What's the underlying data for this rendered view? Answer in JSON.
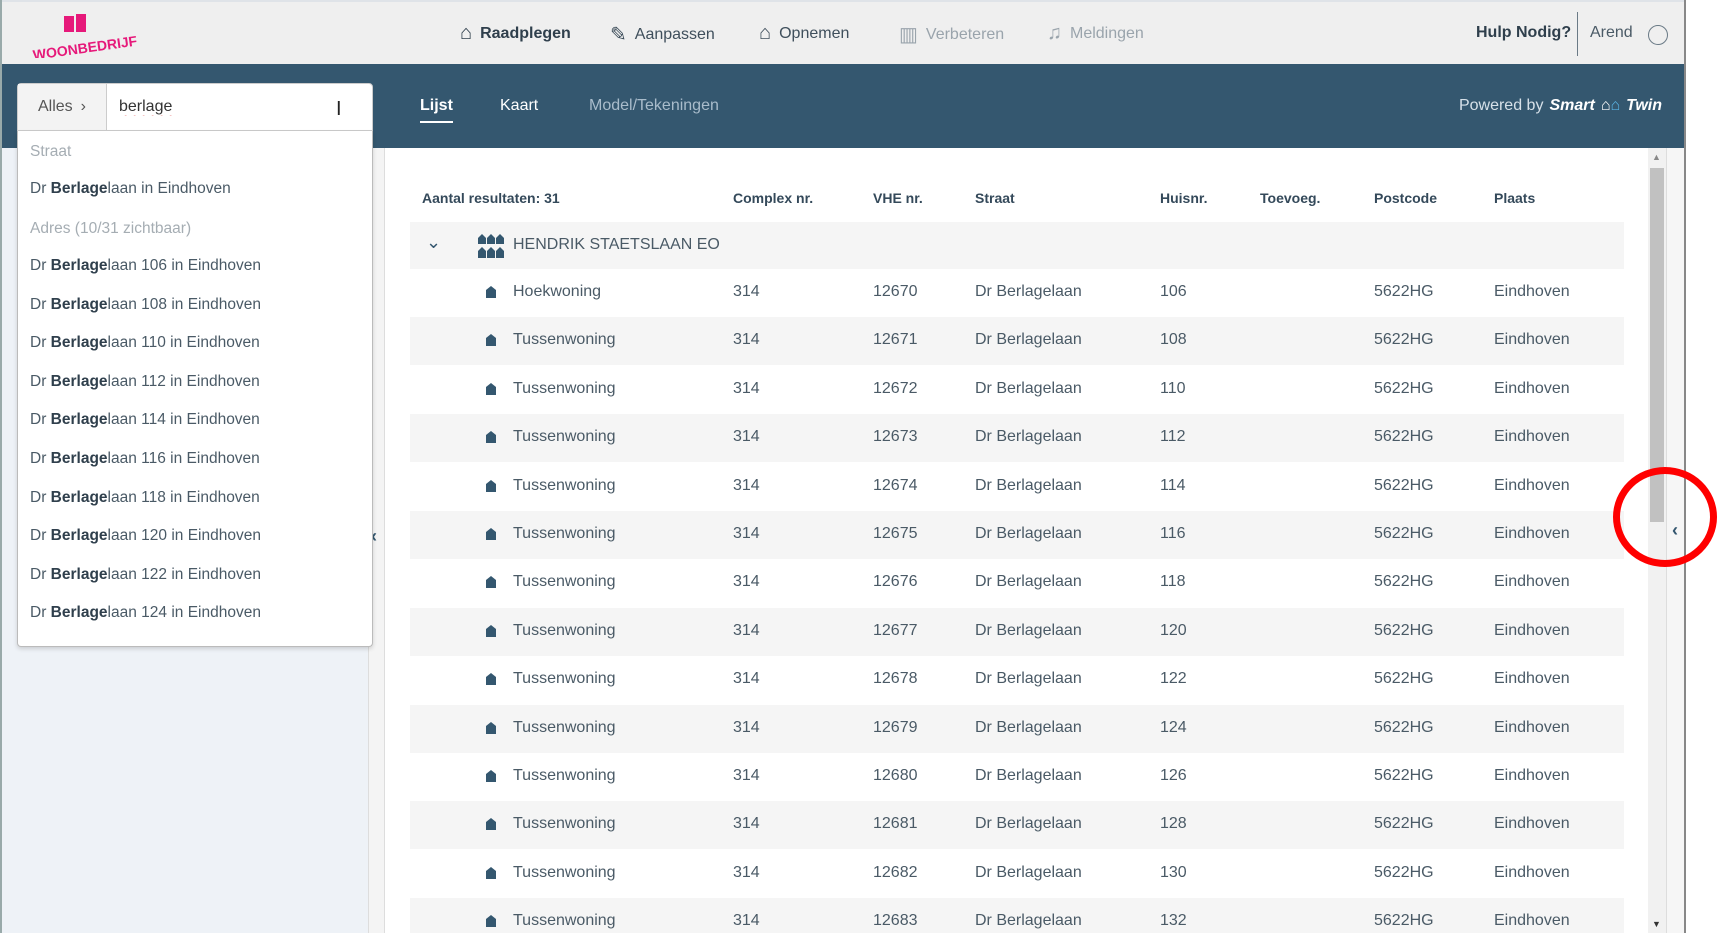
{
  "header": {
    "logo_text": "WOONBEDRIJF",
    "nav": [
      {
        "label": "Raadplegen",
        "icon": "house-search-icon",
        "state": "active"
      },
      {
        "label": "Aanpassen",
        "icon": "edit-icon",
        "state": "normal"
      },
      {
        "label": "Opnemen",
        "icon": "house-check-icon",
        "state": "normal"
      },
      {
        "label": "Verbeteren",
        "icon": "chart-icon",
        "state": "disabled"
      },
      {
        "label": "Meldingen",
        "icon": "bell-icon",
        "state": "disabled"
      }
    ],
    "help": "Hulp Nodig?",
    "user": "Arend"
  },
  "toolbar": {
    "tabs": [
      "Lijst",
      "Kaart",
      "Model/Tekeningen"
    ],
    "powered_by": "Powered by",
    "brand1": "Smart",
    "brand2": "Twin"
  },
  "search": {
    "scope": "Alles",
    "query": "berlage"
  },
  "dropdown": {
    "street_header": "Straat",
    "streets": [
      {
        "pre": "Dr ",
        "bold": "Berlage",
        "post": "laan in Eindhoven"
      }
    ],
    "address_header": "Adres (10/31 zichtbaar)",
    "addresses": [
      {
        "pre": "Dr ",
        "bold": "Berlage",
        "post": "laan 106 in Eindhoven"
      },
      {
        "pre": "Dr ",
        "bold": "Berlage",
        "post": "laan 108 in Eindhoven"
      },
      {
        "pre": "Dr ",
        "bold": "Berlage",
        "post": "laan 110 in Eindhoven"
      },
      {
        "pre": "Dr ",
        "bold": "Berlage",
        "post": "laan 112 in Eindhoven"
      },
      {
        "pre": "Dr ",
        "bold": "Berlage",
        "post": "laan 114 in Eindhoven"
      },
      {
        "pre": "Dr ",
        "bold": "Berlage",
        "post": "laan 116 in Eindhoven"
      },
      {
        "pre": "Dr ",
        "bold": "Berlage",
        "post": "laan 118 in Eindhoven"
      },
      {
        "pre": "Dr ",
        "bold": "Berlage",
        "post": "laan 120 in Eindhoven"
      },
      {
        "pre": "Dr ",
        "bold": "Berlage",
        "post": "laan 122 in Eindhoven"
      },
      {
        "pre": "Dr ",
        "bold": "Berlage",
        "post": "laan 124 in Eindhoven"
      }
    ]
  },
  "table": {
    "count_label": "Aantal resultaten: 31",
    "columns": [
      "Complex nr.",
      "VHE nr.",
      "Straat",
      "Huisnr.",
      "Toevoeg.",
      "Postcode",
      "Plaats"
    ],
    "group": "HENDRIK STAETSLAAN EO",
    "rows": [
      [
        "Hoekwoning",
        "314",
        "12670",
        "Dr Berlagelaan",
        "106",
        "",
        "5622HG",
        "Eindhoven"
      ],
      [
        "Tussenwoning",
        "314",
        "12671",
        "Dr Berlagelaan",
        "108",
        "",
        "5622HG",
        "Eindhoven"
      ],
      [
        "Tussenwoning",
        "314",
        "12672",
        "Dr Berlagelaan",
        "110",
        "",
        "5622HG",
        "Eindhoven"
      ],
      [
        "Tussenwoning",
        "314",
        "12673",
        "Dr Berlagelaan",
        "112",
        "",
        "5622HG",
        "Eindhoven"
      ],
      [
        "Tussenwoning",
        "314",
        "12674",
        "Dr Berlagelaan",
        "114",
        "",
        "5622HG",
        "Eindhoven"
      ],
      [
        "Tussenwoning",
        "314",
        "12675",
        "Dr Berlagelaan",
        "116",
        "",
        "5622HG",
        "Eindhoven"
      ],
      [
        "Tussenwoning",
        "314",
        "12676",
        "Dr Berlagelaan",
        "118",
        "",
        "5622HG",
        "Eindhoven"
      ],
      [
        "Tussenwoning",
        "314",
        "12677",
        "Dr Berlagelaan",
        "120",
        "",
        "5622HG",
        "Eindhoven"
      ],
      [
        "Tussenwoning",
        "314",
        "12678",
        "Dr Berlagelaan",
        "122",
        "",
        "5622HG",
        "Eindhoven"
      ],
      [
        "Tussenwoning",
        "314",
        "12679",
        "Dr Berlagelaan",
        "124",
        "",
        "5622HG",
        "Eindhoven"
      ],
      [
        "Tussenwoning",
        "314",
        "12680",
        "Dr Berlagelaan",
        "126",
        "",
        "5622HG",
        "Eindhoven"
      ],
      [
        "Tussenwoning",
        "314",
        "12681",
        "Dr Berlagelaan",
        "128",
        "",
        "5622HG",
        "Eindhoven"
      ],
      [
        "Tussenwoning",
        "314",
        "12682",
        "Dr Berlagelaan",
        "130",
        "",
        "5622HG",
        "Eindhoven"
      ],
      [
        "Tussenwoning",
        "314",
        "12683",
        "Dr Berlagelaan",
        "132",
        "",
        "5622HG",
        "Eindhoven"
      ]
    ]
  },
  "colors": {
    "brand": "#e6197a",
    "navy": "#34576f",
    "highlight": "#ff0000"
  }
}
